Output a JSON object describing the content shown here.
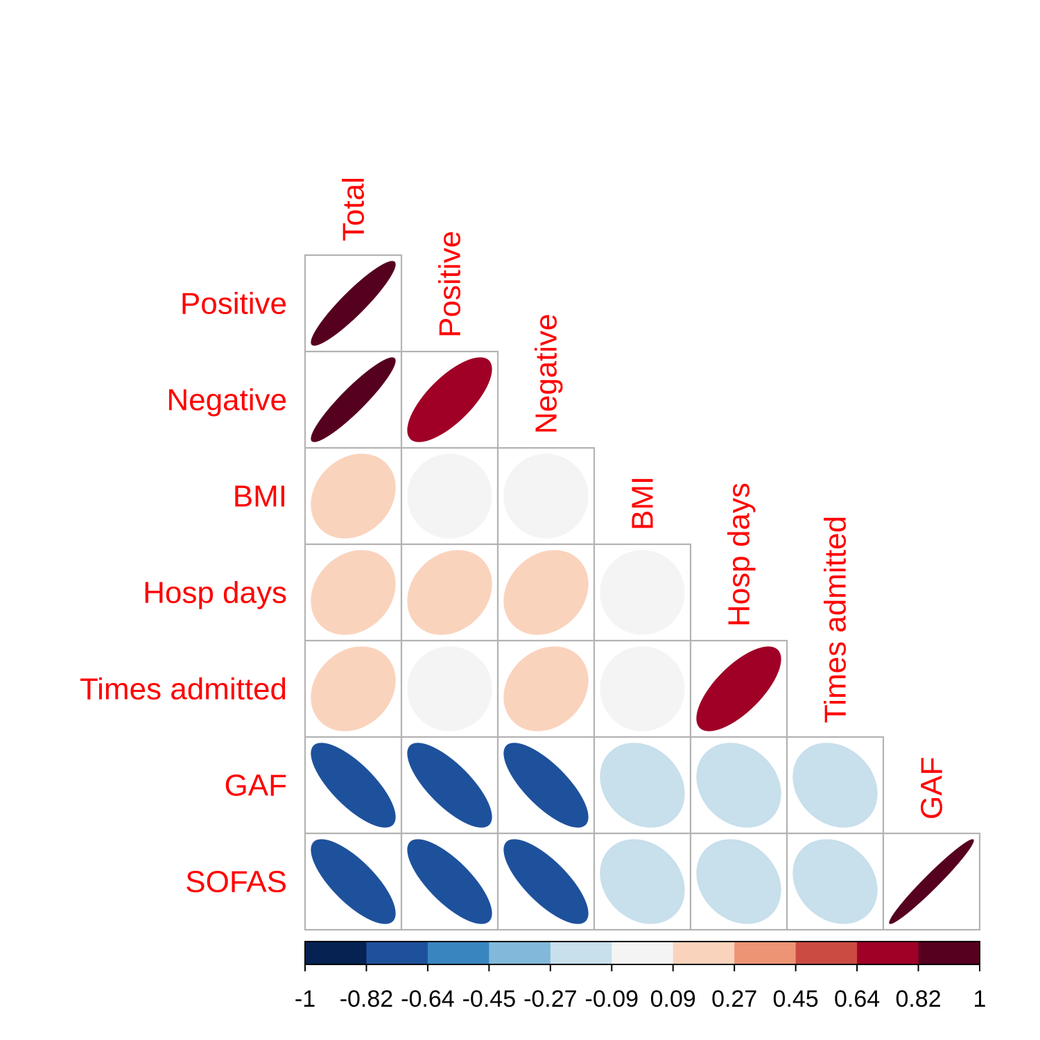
{
  "chart_data": {
    "type": "heatmap",
    "style": "correlation ellipse plot, lower triangle",
    "row_labels": [
      "Positive",
      "Negative",
      "BMI",
      "Hosp days",
      "Times admitted",
      "GAF",
      "SOFAS"
    ],
    "column_labels": [
      "Total",
      "Positive",
      "Negative",
      "BMI",
      "Hosp days",
      "Times admitted",
      "GAF"
    ],
    "label_color": "#ff0000",
    "matrix": [
      [
        0.92
      ],
      [
        0.92,
        0.72
      ],
      [
        0.2,
        0.0,
        0.0
      ],
      [
        0.2,
        0.2,
        0.2,
        0.0
      ],
      [
        0.2,
        0.0,
        0.2,
        0.0,
        0.7
      ],
      [
        -0.75,
        -0.75,
        -0.75,
        -0.2,
        -0.2,
        -0.2
      ],
      [
        -0.75,
        -0.75,
        -0.75,
        -0.2,
        -0.2,
        -0.2,
        0.97
      ]
    ],
    "colorbar": {
      "range": [
        -1,
        1
      ],
      "tick_labels": [
        "-1",
        "-0.82",
        "-0.64",
        "-0.45",
        "-0.27",
        "-0.09",
        "0.09",
        "0.27",
        "0.45",
        "0.64",
        "0.82",
        "1"
      ],
      "colors": [
        "#062252",
        "#1e519c",
        "#3985c0",
        "#82b8d9",
        "#c8dfec",
        "#f4f4f4",
        "#fad3bd",
        "#ec9474",
        "#cb4b42",
        "#a00026",
        "#560020"
      ]
    }
  }
}
